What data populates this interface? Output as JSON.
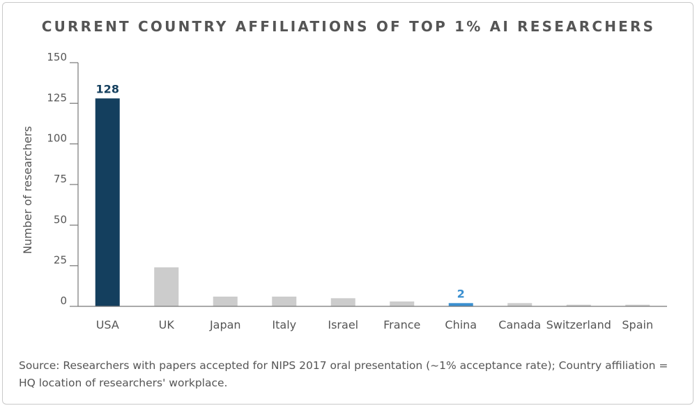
{
  "title": "CURRENT COUNTRY AFFILIATIONS OF TOP 1% AI RESEARCHERS",
  "source_note": "Source: Researchers with papers accepted for NIPS 2017 oral presentation (~1% acceptance rate); Country affiliation = HQ location of researchers' workplace.",
  "colors": {
    "highlight": "#143f5e",
    "accent": "#3a8fd0",
    "default_bar": "#cccccc",
    "axis": "#777777",
    "text": "#555555"
  },
  "chart_data": {
    "type": "bar",
    "title": "CURRENT COUNTRY AFFILIATIONS OF TOP 1% AI RESEARCHERS",
    "xlabel": "",
    "ylabel": "Number of researchers",
    "categories": [
      "USA",
      "UK",
      "Japan",
      "Italy",
      "Israel",
      "France",
      "China",
      "Canada",
      "Switzerland",
      "Spain"
    ],
    "values": [
      128,
      24,
      6,
      6,
      5,
      3,
      2,
      2,
      1,
      1
    ],
    "data_labels": [
      {
        "category": "USA",
        "text": "128",
        "color": "#143f5e"
      },
      {
        "category": "China",
        "text": "2",
        "color": "#3a8fd0"
      }
    ],
    "bar_colors": [
      "#143f5e",
      "#cccccc",
      "#cccccc",
      "#cccccc",
      "#cccccc",
      "#cccccc",
      "#3a8fd0",
      "#cccccc",
      "#cccccc",
      "#cccccc"
    ],
    "yticks": [
      0,
      25,
      50,
      75,
      100,
      125,
      150
    ],
    "ylim": [
      0,
      150
    ],
    "grid": false,
    "legend": "none"
  }
}
